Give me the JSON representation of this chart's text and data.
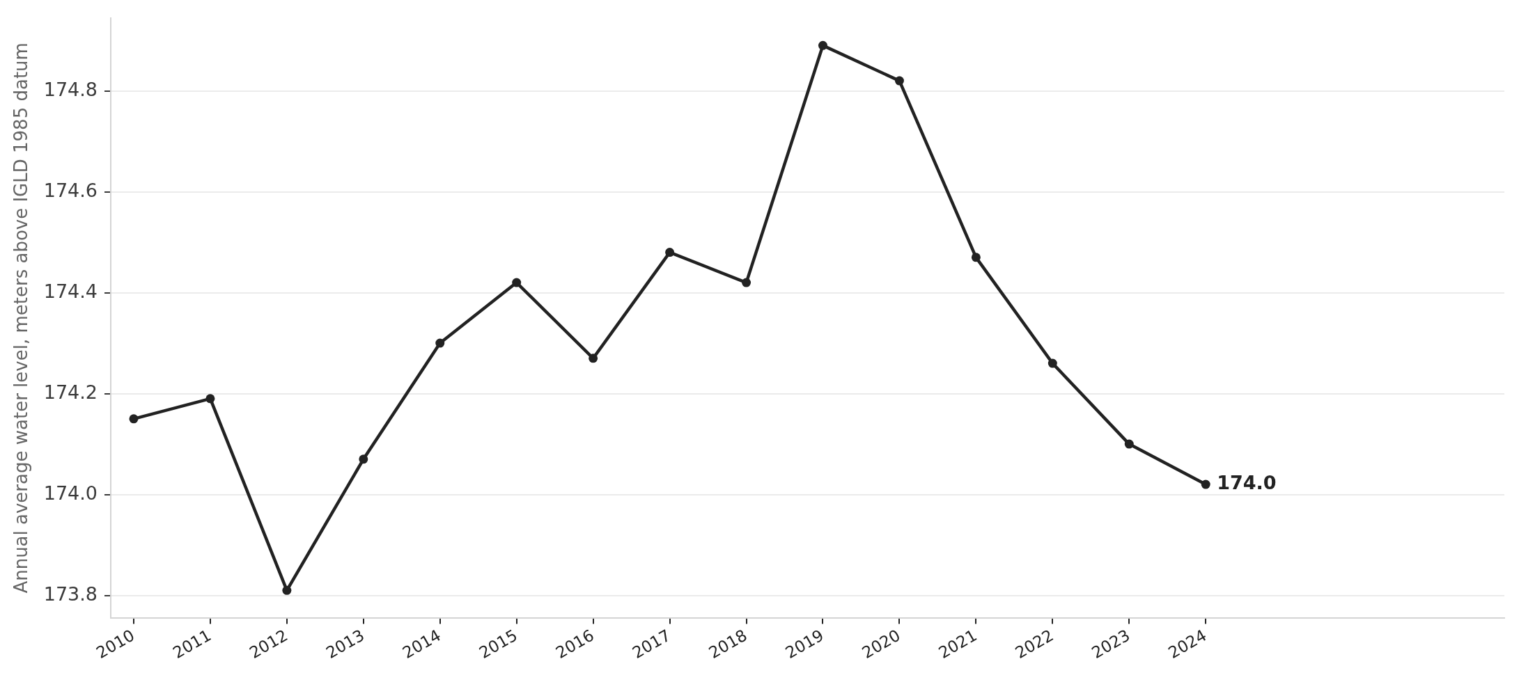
{
  "chart_data": {
    "type": "line",
    "ylabel": "Annual average water level, meters above IGLD 1985 datum",
    "x": [
      2010,
      2011,
      2012,
      2013,
      2014,
      2015,
      2016,
      2017,
      2018,
      2019,
      2020,
      2021,
      2022,
      2023,
      2024
    ],
    "series": [
      {
        "color": "#222222",
        "values": [
          174.15,
          174.19,
          173.81,
          174.07,
          174.3,
          174.42,
          174.27,
          174.48,
          174.42,
          174.89,
          174.82,
          174.47,
          174.26,
          174.1,
          174.02
        ],
        "value_labels": [
          null,
          null,
          null,
          null,
          null,
          null,
          null,
          null,
          null,
          null,
          null,
          null,
          null,
          null,
          "174.0"
        ]
      }
    ],
    "xlim": [
      2009.7,
      2027.9
    ],
    "xticks": [
      2010,
      2011,
      2012,
      2013,
      2014,
      2015,
      2016,
      2017,
      2018,
      2019,
      2020,
      2021,
      2022,
      2023,
      2024
    ],
    "ylim": [
      173.756,
      174.944
    ],
    "yticks": [
      173.8,
      {
        "value": 174,
        "label": "174.0"
      },
      174.2,
      174.4,
      174.6,
      174.8
    ],
    "grid": "y",
    "marker": "circle",
    "line_style": "solid"
  }
}
